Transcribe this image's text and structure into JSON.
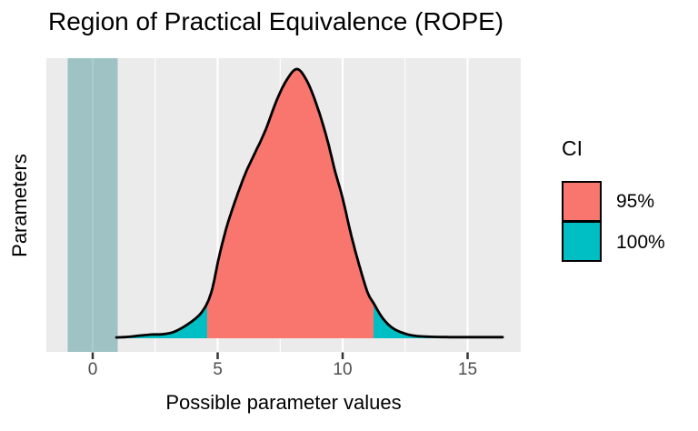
{
  "title": "Region of Practical Equivalence (ROPE)",
  "x_axis": {
    "title": "Possible parameter values",
    "tick_labels": [
      "0",
      "5",
      "10",
      "15"
    ]
  },
  "y_axis": {
    "title": "Parameters"
  },
  "legend": {
    "title": "CI",
    "items": [
      {
        "label": "95%",
        "color": "#F8766D"
      },
      {
        "label": "100%",
        "color": "#00BFC4"
      }
    ]
  },
  "colors": {
    "ci_95_fill": "#F8766D",
    "ci_100_fill": "#00BFC4",
    "rope_band": "rgba(90,158,162,0.52)",
    "panel_background": "#EBEBEB",
    "gridline": "#FFFFFF",
    "curve_stroke": "#000000",
    "tick_mark": "#333333",
    "tick_label": "#4D4D4D"
  },
  "chart_data": {
    "type": "area",
    "title": "Region of Practical Equivalence (ROPE)",
    "xlabel": "Possible parameter values",
    "ylabel": "Parameters",
    "x_major_ticks": [
      0,
      5,
      10,
      15
    ],
    "x_minor_ticks": [
      2.5,
      7.5,
      12.5
    ],
    "x_range": [
      -1.85,
      17.13
    ],
    "rope_interval": [
      -1,
      1
    ],
    "ci_95_interval": [
      4.58,
      11.24
    ],
    "ci_100_interval": [
      0.95,
      16.4
    ],
    "legend_title": "CI",
    "legend_entries": [
      "95%",
      "100%"
    ],
    "density_points": [
      [
        0.95,
        0.003
      ],
      [
        1.4,
        0.005
      ],
      [
        1.9,
        0.01
      ],
      [
        2.4,
        0.014
      ],
      [
        2.8,
        0.015
      ],
      [
        3.2,
        0.022
      ],
      [
        3.6,
        0.04
      ],
      [
        4.0,
        0.065
      ],
      [
        4.3,
        0.09
      ],
      [
        4.58,
        0.13
      ],
      [
        4.8,
        0.19
      ],
      [
        5.05,
        0.3
      ],
      [
        5.35,
        0.41
      ],
      [
        5.7,
        0.51
      ],
      [
        6.1,
        0.61
      ],
      [
        6.5,
        0.69
      ],
      [
        6.9,
        0.77
      ],
      [
        7.3,
        0.87
      ],
      [
        7.7,
        0.95
      ],
      [
        8.15,
        1.0
      ],
      [
        8.55,
        0.96
      ],
      [
        8.95,
        0.87
      ],
      [
        9.35,
        0.75
      ],
      [
        9.7,
        0.62
      ],
      [
        10.0,
        0.52
      ],
      [
        10.35,
        0.38
      ],
      [
        10.7,
        0.26
      ],
      [
        11.0,
        0.17
      ],
      [
        11.24,
        0.13
      ],
      [
        11.6,
        0.075
      ],
      [
        12.0,
        0.038
      ],
      [
        12.5,
        0.017
      ],
      [
        13.0,
        0.008
      ],
      [
        13.7,
        0.005
      ],
      [
        14.5,
        0.004
      ],
      [
        15.5,
        0.004
      ],
      [
        16.4,
        0.004
      ]
    ]
  }
}
